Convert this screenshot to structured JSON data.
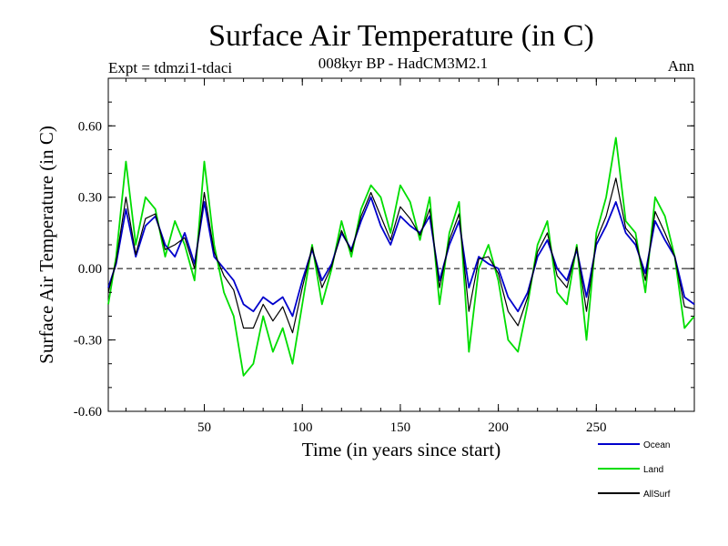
{
  "chart_data": {
    "type": "line",
    "title": "Surface Air Temperature (in C)",
    "subtitle": "008kyr BP - HadCM3M2.1",
    "left_label": "Expt = tdmzi1-tdaci",
    "right_label": "Ann",
    "xlabel": "Time (in years since start)",
    "ylabel": "Surface Air Temperature (in C)",
    "xlim": [
      1,
      300
    ],
    "ylim": [
      -0.6,
      0.8
    ],
    "xticks": [
      50,
      100,
      150,
      200,
      250
    ],
    "xtick_labels": [
      "50",
      "100",
      "150",
      "200",
      "250"
    ],
    "yticks": [
      -0.6,
      -0.3,
      0.0,
      0.3,
      0.6
    ],
    "ytick_labels": [
      "-0.60",
      "-0.30",
      "0.00",
      "0.30",
      "0.60"
    ],
    "zero_line": true,
    "series": [
      {
        "name": "Ocean",
        "color": "#0000cc",
        "x": [
          1,
          5,
          10,
          15,
          20,
          25,
          30,
          35,
          40,
          45,
          50,
          55,
          60,
          65,
          70,
          75,
          80,
          85,
          90,
          95,
          100,
          105,
          110,
          115,
          120,
          125,
          130,
          135,
          140,
          145,
          150,
          155,
          160,
          165,
          170,
          175,
          180,
          185,
          190,
          195,
          200,
          205,
          210,
          215,
          220,
          225,
          230,
          235,
          240,
          245,
          250,
          255,
          260,
          265,
          270,
          275,
          280,
          285,
          290,
          295,
          300
        ],
        "values": [
          -0.08,
          0.02,
          0.25,
          0.05,
          0.18,
          0.22,
          0.1,
          0.05,
          0.15,
          0.02,
          0.28,
          0.05,
          0.0,
          -0.05,
          -0.15,
          -0.18,
          -0.12,
          -0.15,
          -0.12,
          -0.2,
          -0.05,
          0.08,
          -0.05,
          0.02,
          0.15,
          0.08,
          0.2,
          0.3,
          0.18,
          0.1,
          0.22,
          0.18,
          0.15,
          0.22,
          -0.05,
          0.1,
          0.2,
          -0.08,
          0.05,
          0.02,
          0.0,
          -0.12,
          -0.18,
          -0.1,
          0.05,
          0.12,
          0.0,
          -0.05,
          0.08,
          -0.12,
          0.1,
          0.18,
          0.28,
          0.15,
          0.1,
          -0.02,
          0.2,
          0.12,
          0.05,
          -0.12,
          -0.15
        ]
      },
      {
        "name": "Land",
        "color": "#00dd00",
        "x": [
          1,
          5,
          10,
          15,
          20,
          25,
          30,
          35,
          40,
          45,
          50,
          55,
          60,
          65,
          70,
          75,
          80,
          85,
          90,
          95,
          100,
          105,
          110,
          115,
          120,
          125,
          130,
          135,
          140,
          145,
          150,
          155,
          160,
          165,
          170,
          175,
          180,
          185,
          190,
          195,
          200,
          205,
          210,
          215,
          220,
          225,
          230,
          235,
          240,
          245,
          250,
          255,
          260,
          265,
          270,
          275,
          280,
          285,
          290,
          295,
          300
        ],
        "values": [
          -0.15,
          0.05,
          0.45,
          0.1,
          0.3,
          0.25,
          0.05,
          0.2,
          0.1,
          -0.05,
          0.45,
          0.1,
          -0.1,
          -0.2,
          -0.45,
          -0.4,
          -0.2,
          -0.35,
          -0.25,
          -0.4,
          -0.15,
          0.1,
          -0.15,
          0.0,
          0.2,
          0.05,
          0.25,
          0.35,
          0.3,
          0.15,
          0.35,
          0.28,
          0.12,
          0.3,
          -0.15,
          0.15,
          0.28,
          -0.35,
          0.0,
          0.1,
          -0.05,
          -0.3,
          -0.35,
          -0.15,
          0.1,
          0.2,
          -0.1,
          -0.15,
          0.1,
          -0.3,
          0.15,
          0.3,
          0.55,
          0.2,
          0.15,
          -0.1,
          0.3,
          0.22,
          0.05,
          -0.25,
          -0.2
        ]
      },
      {
        "name": "AllSurf",
        "color": "#000000",
        "x": [
          1,
          5,
          10,
          15,
          20,
          25,
          30,
          35,
          40,
          45,
          50,
          55,
          60,
          65,
          70,
          75,
          80,
          85,
          90,
          95,
          100,
          105,
          110,
          115,
          120,
          125,
          130,
          135,
          140,
          145,
          150,
          155,
          160,
          165,
          170,
          175,
          180,
          185,
          190,
          195,
          200,
          205,
          210,
          215,
          220,
          225,
          230,
          235,
          240,
          245,
          250,
          255,
          260,
          265,
          270,
          275,
          280,
          285,
          290,
          295,
          300
        ],
        "values": [
          -0.1,
          0.03,
          0.3,
          0.06,
          0.21,
          0.23,
          0.08,
          0.1,
          0.13,
          0.0,
          0.32,
          0.07,
          -0.03,
          -0.09,
          -0.25,
          -0.25,
          -0.15,
          -0.22,
          -0.16,
          -0.27,
          -0.08,
          0.09,
          -0.08,
          0.01,
          0.16,
          0.07,
          0.22,
          0.32,
          0.22,
          0.12,
          0.26,
          0.21,
          0.14,
          0.25,
          -0.08,
          0.12,
          0.23,
          -0.18,
          0.04,
          0.05,
          -0.02,
          -0.18,
          -0.24,
          -0.12,
          0.07,
          0.15,
          -0.03,
          -0.08,
          0.09,
          -0.18,
          0.12,
          0.22,
          0.38,
          0.17,
          0.12,
          -0.05,
          0.24,
          0.15,
          0.05,
          -0.16,
          -0.17
        ]
      }
    ],
    "legend_position": "bottom-right"
  }
}
